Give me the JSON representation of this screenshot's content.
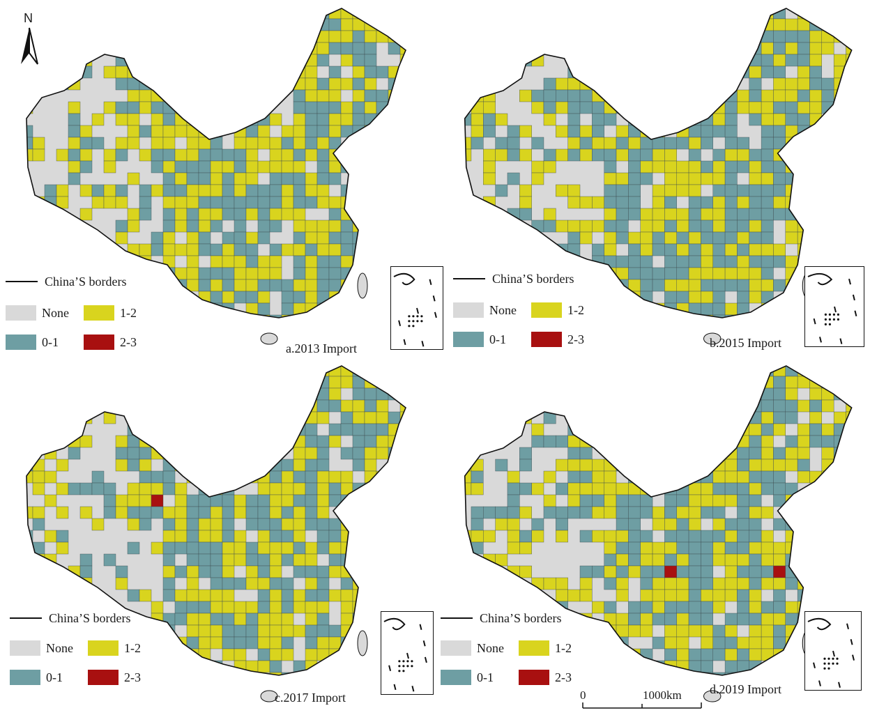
{
  "colors": {
    "none": "#d9d9d9",
    "c01": "#6e9ea3",
    "c12": "#d9d41e",
    "c23": "#a81010",
    "border": "#111111"
  },
  "north_label": "N",
  "legend": {
    "border_label": "China’S borders",
    "none": "None",
    "c01": "0-1",
    "c12": "1-2",
    "c23": "2-3"
  },
  "panels": [
    {
      "caption": "a.2013 Import",
      "has_red": false
    },
    {
      "caption": "b.2015 Import",
      "has_red": false
    },
    {
      "caption": "c.2017 Import",
      "has_red": true
    },
    {
      "caption": "d.2019 Import",
      "has_red": true
    }
  ],
  "scale": {
    "start": "0",
    "end": "1000km"
  }
}
